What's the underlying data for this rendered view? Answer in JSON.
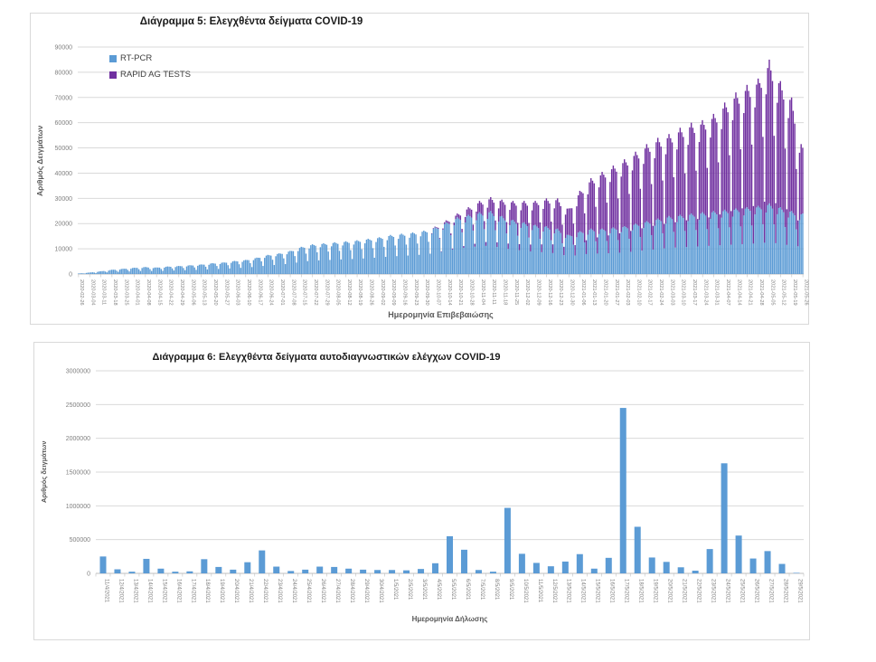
{
  "chart_data": [
    {
      "type": "bar",
      "stacked": true,
      "title": "Διάγραμμα 5: Ελεγχθέντα δείγματα COVID-19",
      "xlabel": "Ημερομηνία Επιβεβαιώσης",
      "ylabel": "Αριθμός Δειγμάτων",
      "ylim": [
        0,
        90000
      ],
      "ytick_step": 10000,
      "grid": true,
      "legend_position": "top-left",
      "bar_frequency": "daily bars, weekly tick labels (Wednesdays)",
      "categories": [
        "2020-02-26",
        "2020-03-04",
        "2020-03-11",
        "2020-03-18",
        "2020-03-25",
        "2020-04-01",
        "2020-04-08",
        "2020-04-15",
        "2020-04-22",
        "2020-04-29",
        "2020-05-06",
        "2020-05-13",
        "2020-05-20",
        "2020-05-27",
        "2020-06-03",
        "2020-06-10",
        "2020-06-17",
        "2020-06-24",
        "2020-07-01",
        "2020-07-08",
        "2020-07-15",
        "2020-07-22",
        "2020-07-29",
        "2020-08-05",
        "2020-08-12",
        "2020-08-19",
        "2020-08-26",
        "2020-09-02",
        "2020-09-09",
        "2020-09-16",
        "2020-09-23",
        "2020-09-30",
        "2020-10-07",
        "2020-10-14",
        "2020-10-21",
        "2020-10-28",
        "2020-11-04",
        "2020-11-11",
        "2020-11-18",
        "2020-11-25",
        "2020-12-02",
        "2020-12-09",
        "2020-12-16",
        "2020-12-23",
        "2020-12-30",
        "2021-01-06",
        "2021-01-13",
        "2021-01-20",
        "2021-01-27",
        "2021-02-03",
        "2021-02-10",
        "2021-02-17",
        "2021-02-24",
        "2021-03-03",
        "2021-03-10",
        "2021-03-17",
        "2021-03-24",
        "2021-03-31",
        "2021-04-07",
        "2021-04-14",
        "2021-04-21",
        "2021-04-28",
        "2021-05-05",
        "2021-05-12",
        "2021-05-19",
        "2021-05-26"
      ],
      "series": [
        {
          "name": "RT-PCR",
          "color": "#5B9BD5",
          "weekly_peak_values": [
            200,
            600,
            1100,
            1700,
            2100,
            2500,
            2800,
            2600,
            3000,
            3200,
            3500,
            3800,
            4300,
            4600,
            5200,
            5600,
            6500,
            7600,
            8200,
            9200,
            10800,
            11800,
            12200,
            12600,
            13000,
            13400,
            14000,
            14600,
            15500,
            16000,
            16500,
            17200,
            18500,
            20500,
            22500,
            23500,
            24500,
            25000,
            23000,
            21500,
            20500,
            19500,
            19000,
            18000,
            15500,
            17000,
            18000,
            18000,
            18500,
            19000,
            20000,
            21000,
            22000,
            23000,
            23500,
            24000,
            24500,
            25000,
            25500,
            26000,
            26500,
            27000,
            28000,
            26500,
            25000,
            24000
          ]
        },
        {
          "name": "RAPID AG TESTS",
          "color": "#7030A0",
          "weekly_peak_values": [
            0,
            0,
            0,
            0,
            0,
            0,
            0,
            0,
            0,
            0,
            0,
            0,
            0,
            0,
            0,
            0,
            0,
            0,
            0,
            0,
            0,
            0,
            0,
            0,
            0,
            0,
            0,
            0,
            0,
            0,
            0,
            0,
            300,
            800,
            1500,
            3000,
            4500,
            5500,
            6500,
            7500,
            8500,
            9500,
            11000,
            12000,
            10500,
            16000,
            20000,
            22500,
            24500,
            26500,
            28500,
            30500,
            32000,
            32500,
            34500,
            36000,
            36500,
            38500,
            42500,
            46000,
            48500,
            50500,
            57000,
            50000,
            45000,
            26000
          ]
        }
      ],
      "render_hints": {
        "anchor_weekday": "Wednesday",
        "weekday_factors_rtpcr": [
          1.0,
          0.97,
          0.94,
          0.72,
          0.45,
          0.88,
          0.98
        ],
        "weekday_factors_rapid": [
          1.0,
          0.96,
          0.92,
          0.65,
          0.3,
          0.85,
          0.97
        ]
      }
    },
    {
      "type": "bar",
      "title": "Διάγραμμα 6: Ελεγχθέντα δείγματα αυτοδιαγνωστικών ελέγχων COVID-19",
      "xlabel": "Ημερομηνία Δήλωσης",
      "ylabel": "Αριθμός δειγμάτων",
      "ylim": [
        0,
        3000000
      ],
      "ytick_step": 500000,
      "grid": true,
      "bar_color": "#5B9BD5",
      "last_bar_color": "#A9C9EA",
      "categories": [
        "11/4/2021",
        "12/4/2021",
        "13/4/2021",
        "14/4/2021",
        "15/4/2021",
        "16/4/2021",
        "17/4/2021",
        "18/4/2021",
        "19/4/2021",
        "20/4/2021",
        "21/4/2021",
        "22/4/2021",
        "23/4/2021",
        "24/4/2021",
        "25/4/2021",
        "26/4/2021",
        "27/4/2021",
        "28/4/2021",
        "29/4/2021",
        "30/4/2021",
        "1/5/2021",
        "2/5/2021",
        "3/5/2021",
        "4/5/2021",
        "5/5/2021",
        "6/5/2021",
        "7/5/2021",
        "8/5/2021",
        "9/5/2021",
        "10/5/2021",
        "11/5/2021",
        "12/5/2021",
        "13/5/2021",
        "14/5/2021",
        "15/5/2021",
        "16/5/2021",
        "17/5/2021",
        "18/5/2021",
        "19/5/2021",
        "20/5/2021",
        "21/5/2021",
        "22/5/2021",
        "23/5/2021",
        "24/5/2021",
        "25/5/2021",
        "26/5/2021",
        "27/5/2021",
        "28/5/2021",
        "29/5/2021"
      ],
      "values": [
        250000,
        60000,
        25000,
        215000,
        70000,
        25000,
        30000,
        210000,
        95000,
        55000,
        165000,
        340000,
        100000,
        35000,
        55000,
        100000,
        95000,
        70000,
        55000,
        50000,
        50000,
        45000,
        65000,
        150000,
        550000,
        350000,
        50000,
        25000,
        970000,
        290000,
        155000,
        105000,
        175000,
        285000,
        70000,
        230000,
        2450000,
        690000,
        235000,
        170000,
        90000,
        40000,
        360000,
        1630000,
        560000,
        220000,
        330000,
        140000,
        15000
      ]
    }
  ],
  "colors": {
    "grid": "#d9d9d9",
    "axis_line": "#bfbfbf",
    "tick_text": "#808080",
    "frame_border": "#d9d9d9"
  }
}
